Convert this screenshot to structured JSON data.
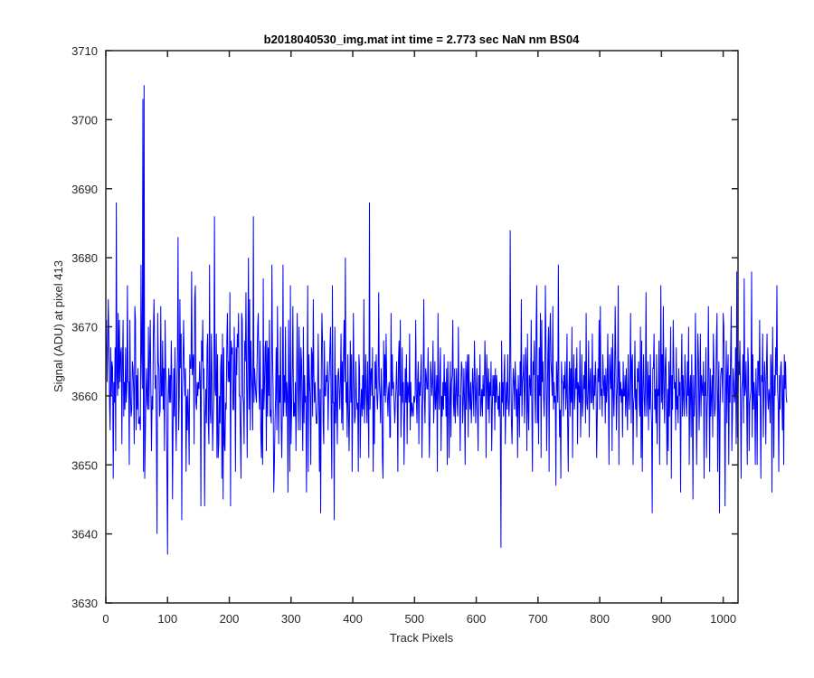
{
  "chart_data": {
    "type": "line",
    "title": "b2018040530_img.mat int time = 2.773 sec  NaN nm BS04",
    "xlabel": "Track Pixels",
    "ylabel": "Signal (ADU) at pixel 413",
    "xlim": [
      0,
      1024
    ],
    "ylim": [
      3630,
      3710
    ],
    "xticks": [
      0,
      100,
      200,
      300,
      400,
      500,
      600,
      700,
      800,
      900,
      1000
    ],
    "yticks": [
      3630,
      3640,
      3650,
      3660,
      3670,
      3680,
      3690,
      3700,
      3710
    ],
    "grid": false,
    "legend": "none",
    "series_color": "#0000ff",
    "axis_color": "#262626",
    "series": [
      {
        "x_start": 1,
        "x_step": 1,
        "values": [
          3671,
          3662,
          3667,
          3674,
          3668,
          3659,
          3655,
          3667,
          3660,
          3665,
          3664,
          3648,
          3662,
          3659,
          3667,
          3652,
          3688,
          3663,
          3660,
          3672,
          3661,
          3671,
          3662,
          3666,
          3667,
          3653,
          3665,
          3671,
          3657,
          3662,
          3658,
          3667,
          3659,
          3661,
          3676,
          3662,
          3662,
          3650,
          3671,
          3660,
          3657,
          3658,
          3665,
          3664,
          3661,
          3653,
          3673,
          3671,
          3655,
          3663,
          3658,
          3664,
          3656,
          3656,
          3657,
          3655,
          3679,
          3666,
          3661,
          3703,
          3649,
          3705,
          3648,
          3654,
          3660,
          3664,
          3659,
          3658,
          3670,
          3658,
          3666,
          3671,
          3661,
          3652,
          3660,
          3658,
          3669,
          3674,
          3667,
          3661,
          3663,
          3654,
          3640,
          3672,
          3665,
          3664,
          3657,
          3658,
          3673,
          3660,
          3660,
          3668,
          3658,
          3664,
          3652,
          3671,
          3664,
          3661,
          3649,
          3637,
          3660,
          3664,
          3659,
          3663,
          3659,
          3668,
          3662,
          3645,
          3656,
          3664,
          3657,
          3667,
          3657,
          3652,
          3661,
          3666,
          3683,
          3655,
          3660,
          3674,
          3664,
          3669,
          3642,
          3660,
          3665,
          3671,
          3664,
          3660,
          3664,
          3649,
          3660,
          3655,
          3661,
          3657,
          3650,
          3666,
          3664,
          3664,
          3678,
          3663,
          3665,
          3666,
          3653,
          3674,
          3676,
          3659,
          3658,
          3662,
          3660,
          3662,
          3661,
          3665,
          3662,
          3644,
          3668,
          3665,
          3671,
          3661,
          3664,
          3644,
          3657,
          3661,
          3656,
          3667,
          3669,
          3656,
          3653,
          3679,
          3658,
          3656,
          3669,
          3663,
          3652,
          3657,
          3660,
          3686,
          3661,
          3660,
          3669,
          3651,
          3666,
          3651,
          3653,
          3660,
          3656,
          3664,
          3666,
          3648,
          3669,
          3645,
          3667,
          3653,
          3652,
          3659,
          3658,
          3668,
          3672,
          3662,
          3665,
          3662,
          3675,
          3644,
          3668,
          3666,
          3667,
          3658,
          3658,
          3670,
          3664,
          3649,
          3667,
          3663,
          3669,
          3667,
          3672,
          3660,
          3660,
          3654,
          3648,
          3672,
          3671,
          3660,
          3659,
          3653,
          3668,
          3665,
          3675,
          3662,
          3651,
          3666,
          3680,
          3658,
          3674,
          3655,
          3668,
          3663,
          3661,
          3655,
          3686,
          3659,
          3664,
          3662,
          3660,
          3659,
          3665,
          3670,
          3672,
          3661,
          3658,
          3668,
          3655,
          3651,
          3661,
          3650,
          3677,
          3658,
          3661,
          3667,
          3668,
          3652,
          3668,
          3657,
          3667,
          3660,
          3671,
          3657,
          3658,
          3656,
          3679,
          3666,
          3661,
          3646,
          3650,
          3656,
          3660,
          3667,
          3655,
          3673,
          3663,
          3653,
          3663,
          3659,
          3670,
          3656,
          3651,
          3659,
          3679,
          3657,
          3663,
          3659,
          3670,
          3657,
          3662,
          3660,
          3646,
          3671,
          3661,
          3649,
          3676,
          3653,
          3658,
          3664,
          3673,
          3657,
          3659,
          3657,
          3662,
          3652,
          3663,
          3672,
          3661,
          3655,
          3670,
          3664,
          3655,
          3667,
          3665,
          3658,
          3652,
          3670,
          3656,
          3663,
          3659,
          3660,
          3646,
          3661,
          3676,
          3649,
          3666,
          3662,
          3660,
          3650,
          3667,
          3666,
          3657,
          3674,
          3663,
          3659,
          3662,
          3658,
          3656,
          3656,
          3660,
          3669,
          3660,
          3649,
          3661,
          3643,
          3663,
          3672,
          3668,
          3656,
          3653,
          3668,
          3660,
          3660,
          3663,
          3662,
          3665,
          3655,
          3661,
          3663,
          3667,
          3670,
          3657,
          3648,
          3676,
          3659,
          3659,
          3642,
          3670,
          3656,
          3663,
          3659,
          3653,
          3663,
          3664,
          3661,
          3658,
          3662,
          3669,
          3656,
          3665,
          3655,
          3666,
          3671,
          3662,
          3680,
          3659,
          3662,
          3654,
          3666,
          3658,
          3652,
          3659,
          3668,
          3659,
          3666,
          3649,
          3660,
          3672,
          3662,
          3656,
          3657,
          3665,
          3660,
          3658,
          3659,
          3649,
          3666,
          3664,
          3651,
          3658,
          3661,
          3657,
          3663,
          3658,
          3674,
          3656,
          3660,
          3666,
          3660,
          3656,
          3665,
          3658,
          3651,
          3688,
          3658,
          3663,
          3664,
          3660,
          3667,
          3649,
          3660,
          3653,
          3665,
          3661,
          3666,
          3660,
          3658,
          3661,
          3675,
          3662,
          3660,
          3656,
          3664,
          3660,
          3651,
          3648,
          3668,
          3660,
          3666,
          3659,
          3669,
          3662,
          3660,
          3657,
          3661,
          3662,
          3654,
          3654,
          3672,
          3660,
          3666,
          3661,
          3662,
          3659,
          3656,
          3659,
          3661,
          3665,
          3660,
          3649,
          3665,
          3668,
          3660,
          3671,
          3654,
          3659,
          3667,
          3659,
          3662,
          3650,
          3657,
          3664,
          3659,
          3666,
          3653,
          3662,
          3661,
          3659,
          3669,
          3655,
          3662,
          3657,
          3659,
          3658,
          3657,
          3660,
          3659,
          3660,
          3671,
          3660,
          3656,
          3662,
          3665,
          3653,
          3662,
          3660,
          3663,
          3666,
          3651,
          3658,
          3662,
          3674,
          3660,
          3656,
          3664,
          3663,
          3661,
          3661,
          3667,
          3659,
          3651,
          3657,
          3665,
          3663,
          3660,
          3662,
          3668,
          3656,
          3659,
          3665,
          3658,
          3660,
          3663,
          3649,
          3672,
          3661,
          3658,
          3663,
          3667,
          3652,
          3660,
          3657,
          3662,
          3658,
          3666,
          3660,
          3662,
          3657,
          3664,
          3650,
          3665,
          3660,
          3651,
          3659,
          3665,
          3654,
          3662,
          3663,
          3671,
          3659,
          3657,
          3664,
          3656,
          3660,
          3664,
          3659,
          3657,
          3670,
          3660,
          3660,
          3652,
          3661,
          3665,
          3664,
          3656,
          3659,
          3664,
          3659,
          3650,
          3665,
          3658,
          3664,
          3666,
          3654,
          3666,
          3660,
          3658,
          3662,
          3656,
          3659,
          3664,
          3661,
          3657,
          3668,
          3663,
          3656,
          3660,
          3664,
          3658,
          3652,
          3663,
          3660,
          3666,
          3657,
          3659,
          3661,
          3657,
          3663,
          3660,
          3660,
          3668,
          3663,
          3651,
          3666,
          3662,
          3658,
          3664,
          3656,
          3662,
          3660,
          3665,
          3652,
          3658,
          3663,
          3660,
          3663,
          3655,
          3664,
          3659,
          3663,
          3661,
          3658,
          3660,
          3657,
          3662,
          3656,
          3638,
          3668,
          3659,
          3662,
          3657,
          3663,
          3666,
          3653,
          3659,
          3662,
          3658,
          3666,
          3660,
          3657,
          3660,
          3684,
          3665,
          3656,
          3653,
          3660,
          3664,
          3662,
          3658,
          3665,
          3662,
          3657,
          3661,
          3651,
          3663,
          3660,
          3654,
          3665,
          3660,
          3674,
          3657,
          3662,
          3663,
          3666,
          3656,
          3661,
          3667,
          3664,
          3652,
          3669,
          3658,
          3655,
          3663,
          3662,
          3660,
          3671,
          3658,
          3649,
          3665,
          3663,
          3668,
          3660,
          3656,
          3670,
          3676,
          3656,
          3663,
          3653,
          3667,
          3660,
          3672,
          3651,
          3671,
          3662,
          3665,
          3660,
          3657,
          3662,
          3676,
          3667,
          3652,
          3659,
          3666,
          3670,
          3649,
          3668,
          3672,
          3665,
          3663,
          3660,
          3673,
          3658,
          3662,
          3659,
          3660,
          3647,
          3665,
          3662,
          3659,
          3679,
          3661,
          3654,
          3658,
          3648,
          3665,
          3662,
          3662,
          3657,
          3663,
          3661,
          3665,
          3658,
          3660,
          3669,
          3656,
          3649,
          3661,
          3665,
          3657,
          3664,
          3659,
          3670,
          3651,
          3662,
          3666,
          3658,
          3660,
          3664,
          3661,
          3667,
          3653,
          3662,
          3661,
          3659,
          3668,
          3654,
          3660,
          3666,
          3657,
          3659,
          3663,
          3661,
          3665,
          3656,
          3672,
          3659,
          3658,
          3661,
          3668,
          3654,
          3662,
          3664,
          3659,
          3659,
          3669,
          3660,
          3658,
          3663,
          3660,
          3665,
          3662,
          3651,
          3657,
          3664,
          3662,
          3671,
          3658,
          3673,
          3660,
          3661,
          3657,
          3666,
          3662,
          3660,
          3663,
          3656,
          3664,
          3659,
          3661,
          3669,
          3660,
          3650,
          3666,
          3663,
          3661,
          3667,
          3652,
          3669,
          3661,
          3657,
          3662,
          3673,
          3665,
          3655,
          3660,
          3663,
          3676,
          3650,
          3665,
          3660,
          3662,
          3659,
          3661,
          3654,
          3665,
          3660,
          3660,
          3663,
          3657,
          3664,
          3659,
          3655,
          3666,
          3660,
          3658,
          3663,
          3672,
          3656,
          3665,
          3666,
          3650,
          3659,
          3660,
          3668,
          3658,
          3661,
          3654,
          3664,
          3662,
          3665,
          3659,
          3657,
          3670,
          3651,
          3668,
          3649,
          3661,
          3666,
          3660,
          3657,
          3662,
          3675,
          3657,
          3660,
          3665,
          3655,
          3663,
          3658,
          3666,
          3659,
          3656,
          3643,
          3664,
          3664,
          3669,
          3658,
          3661,
          3656,
          3666,
          3653,
          3661,
          3660,
          3668,
          3650,
          3662,
          3676,
          3659,
          3666,
          3658,
          3673,
          3662,
          3656,
          3664,
          3667,
          3659,
          3650,
          3661,
          3652,
          3665,
          3657,
          3663,
          3670,
          3648,
          3663,
          3658,
          3671,
          3664,
          3661,
          3662,
          3655,
          3667,
          3658,
          3660,
          3656,
          3664,
          3660,
          3662,
          3646,
          3662,
          3669,
          3657,
          3663,
          3660,
          3657,
          3666,
          3662,
          3659,
          3657,
          3665,
          3660,
          3670,
          3650,
          3661,
          3663,
          3654,
          3666,
          3659,
          3645,
          3663,
          3657,
          3660,
          3672,
          3662,
          3650,
          3659,
          3669,
          3665,
          3655,
          3660,
          3669,
          3657,
          3663,
          3661,
          3660,
          3665,
          3648,
          3662,
          3660,
          3667,
          3651,
          3658,
          3661,
          3673,
          3662,
          3649,
          3664,
          3657,
          3660,
          3663,
          3654,
          3669,
          3664,
          3657,
          3658,
          3661,
          3668,
          3672,
          3649,
          3660,
          3665,
          3643,
          3658,
          3663,
          3664,
          3664,
          3659,
          3672,
          3670,
          3661,
          3644,
          3660,
          3668,
          3656,
          3663,
          3666,
          3650,
          3663,
          3659,
          3666,
          3673,
          3652,
          3657,
          3664,
          3662,
          3659,
          3660,
          3667,
          3653,
          3678,
          3654,
          3660,
          3665,
          3663,
          3668,
          3660,
          3648,
          3661,
          3662,
          3666,
          3656,
          3677,
          3660,
          3661,
          3665,
          3659,
          3650,
          3667,
          3664,
          3652,
          3659,
          3660,
          3661,
          3678,
          3654,
          3666,
          3658,
          3662,
          3660,
          3650,
          3664,
          3660,
          3650,
          3665,
          3665,
          3660,
          3671,
          3659,
          3648,
          3663,
          3662,
          3669,
          3654,
          3661,
          3665,
          3662,
          3653,
          3664,
          3669,
          3660,
          3658,
          3661,
          3660,
          3656,
          3666,
          3664,
          3646,
          3670,
          3661,
          3651,
          3663,
          3660,
          3667,
          3663,
          3676,
          3661,
          3659,
          3649,
          3663,
          3658,
          3664,
          3665,
          3660,
          3655,
          3663,
          3650,
          3666,
          3661,
          3665,
          3660,
          3659
        ]
      }
    ]
  }
}
